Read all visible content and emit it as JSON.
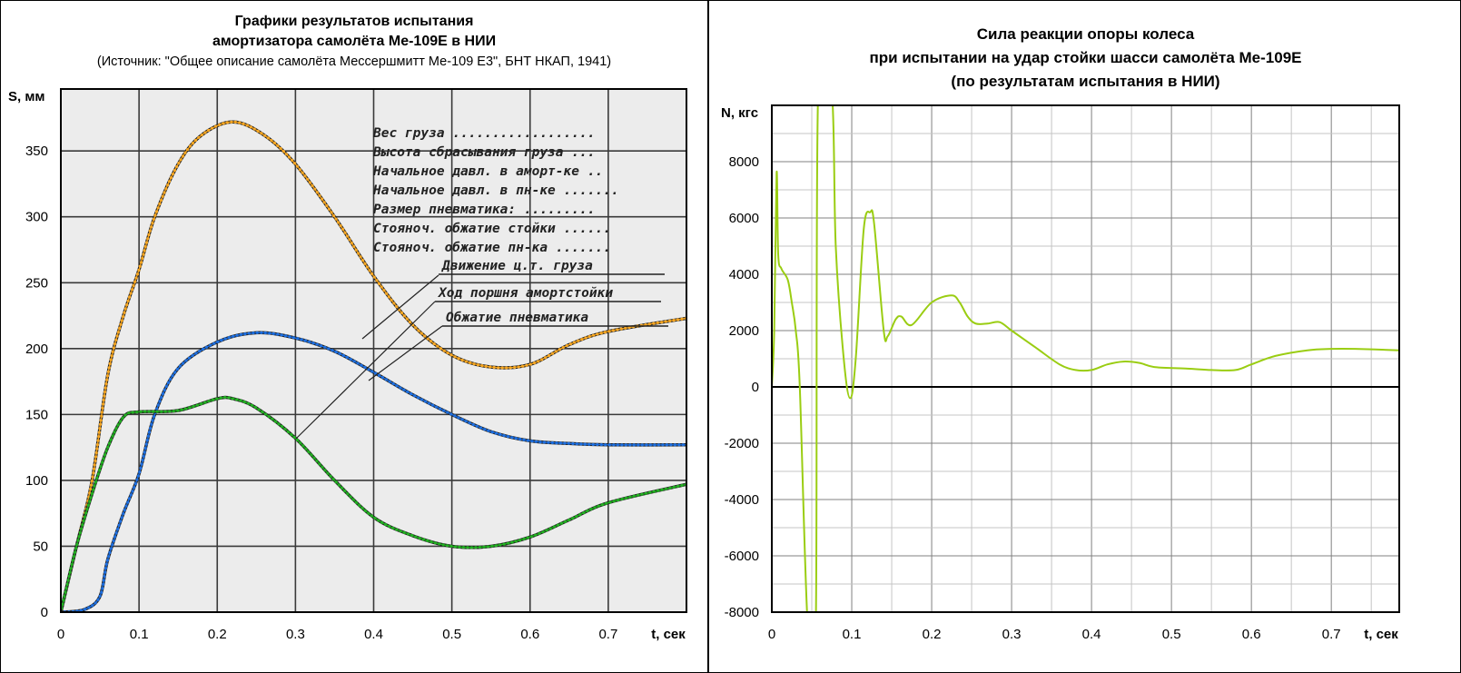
{
  "left": {
    "title1": "Графики результатов испытания",
    "title2": "амортизатора самолёта Ме-109Е в НИИ",
    "source": "(Источник: \"Общее описание самолёта Мессершмитт Ме-109 Е3\", БНТ НКАП, 1941)",
    "handwritten": [
      "Вес груза ..................",
      "Высота сбрасывания груза ...",
      "Начальное давл. в аморт-ке ..",
      "Начальное давл. в пн-ке .......",
      "Размер пневматика: .........",
      "Стояноч. обжатие стойки ......",
      "Стояноч. обжатие пн-ка ......."
    ],
    "curve_labels": [
      "Движение ц.т. груза",
      "Ход поршня амортстойки",
      "Обжатие пневматика"
    ]
  },
  "right": {
    "title1": "Сила реакции опоры колеса",
    "title2": "при испытании на удар стойки шасси самолёта Ме-109Е",
    "title3": "(по результатам испытания в НИИ)"
  },
  "chart_data": [
    {
      "type": "line",
      "xlabel": "t, сек",
      "ylabel": "S, мм",
      "xlim": [
        0,
        0.8
      ],
      "ylim": [
        0,
        397
      ],
      "xticks": [
        "0",
        "0.1",
        "0.2",
        "0.3",
        "0.4",
        "0.5",
        "0.6",
        "0.7"
      ],
      "yticks": [
        "0",
        "50",
        "100",
        "150",
        "200",
        "250",
        "300",
        "350"
      ],
      "grid": true,
      "series": [
        {
          "name": "Движение ц.т. груза",
          "color": "#f5a623",
          "x": [
            0,
            0.02,
            0.04,
            0.06,
            0.08,
            0.1,
            0.12,
            0.15,
            0.18,
            0.22,
            0.26,
            0.3,
            0.35,
            0.4,
            0.45,
            0.5,
            0.55,
            0.6,
            0.65,
            0.7,
            0.8
          ],
          "y": [
            0,
            50,
            100,
            180,
            225,
            260,
            300,
            340,
            362,
            372,
            362,
            340,
            300,
            255,
            218,
            195,
            186,
            188,
            203,
            213,
            223
          ]
        },
        {
          "name": "Ход поршня амортстойки",
          "color": "#1e6fe0",
          "x": [
            0,
            0.03,
            0.05,
            0.06,
            0.08,
            0.1,
            0.12,
            0.15,
            0.2,
            0.25,
            0.3,
            0.35,
            0.4,
            0.45,
            0.5,
            0.55,
            0.6,
            0.65,
            0.7,
            0.8
          ],
          "y": [
            0,
            2,
            12,
            40,
            75,
            105,
            150,
            185,
            205,
            212,
            208,
            198,
            182,
            165,
            150,
            137,
            130,
            128,
            127,
            127
          ]
        },
        {
          "name": "Обжатие пневматика",
          "color": "#22b022",
          "x": [
            0,
            0.02,
            0.04,
            0.06,
            0.08,
            0.1,
            0.15,
            0.2,
            0.22,
            0.25,
            0.3,
            0.35,
            0.4,
            0.45,
            0.5,
            0.55,
            0.6,
            0.65,
            0.7,
            0.8
          ],
          "y": [
            0,
            50,
            90,
            125,
            148,
            152,
            153,
            162,
            162,
            155,
            132,
            100,
            72,
            58,
            50,
            50,
            57,
            70,
            83,
            97
          ]
        }
      ]
    },
    {
      "type": "line",
      "xlabel": "t, сек",
      "ylabel": "N, кгс",
      "xlim": [
        0,
        0.785
      ],
      "ylim": [
        -8000,
        10000
      ],
      "xticks": [
        "0",
        "0.1",
        "0.2",
        "0.3",
        "0.4",
        "0.5",
        "0.6",
        "0.7"
      ],
      "yticks": [
        "-8000",
        "-6000",
        "-4000",
        "-2000",
        "0",
        "2000",
        "4000",
        "6000",
        "8000"
      ],
      "grid": true,
      "series": [
        {
          "name": "N",
          "color": "#9acd12",
          "x": [
            0,
            0.003,
            0.006,
            0.008,
            0.012,
            0.02,
            0.025,
            0.03,
            0.035,
            0.045,
            0.055,
            0.058,
            0.075,
            0.08,
            0.09,
            0.098,
            0.105,
            0.115,
            0.123,
            0.128,
            0.14,
            0.145,
            0.155,
            0.162,
            0.175,
            0.2,
            0.225,
            0.235,
            0.245,
            0.255,
            0.27,
            0.285,
            0.3,
            0.33,
            0.36,
            0.38,
            0.4,
            0.42,
            0.44,
            0.46,
            0.48,
            0.52,
            0.55,
            0.58,
            0.6,
            0.63,
            0.67,
            0.7,
            0.73,
            0.785
          ],
          "y": [
            0,
            2000,
            7600,
            4700,
            4200,
            3800,
            3000,
            2000,
            0,
            -8500,
            -8500,
            10500,
            10500,
            5000,
            1000,
            -400,
            1000,
            5600,
            6200,
            5800,
            2000,
            1800,
            2400,
            2500,
            2200,
            3000,
            3250,
            3000,
            2500,
            2250,
            2250,
            2300,
            2000,
            1400,
            800,
            600,
            600,
            800,
            900,
            850,
            700,
            650,
            600,
            600,
            800,
            1100,
            1300,
            1350,
            1350,
            1300
          ]
        }
      ]
    }
  ]
}
